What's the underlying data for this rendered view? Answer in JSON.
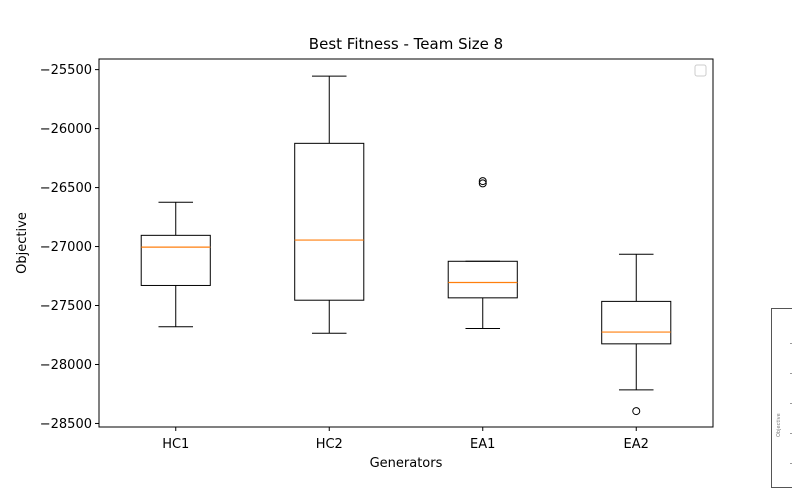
{
  "chart_data": {
    "type": "boxplot",
    "title": "Best Fitness - Team Size 8",
    "xlabel": "Generators",
    "ylabel": "Objective",
    "categories": [
      "HC1",
      "HC2",
      "EA1",
      "EA2"
    ],
    "ylim": [
      -28530,
      -25410
    ],
    "yticks": [
      -25500,
      -26000,
      -26500,
      -27000,
      -27500,
      -28000,
      -28500
    ],
    "yticklabels": [
      "−25500",
      "−26000",
      "−26500",
      "−27000",
      "−27500",
      "−28000",
      "−28500"
    ],
    "grid": false,
    "legend": "top-right",
    "box_color": "#000000",
    "median_color": "#ff7f0e",
    "boxes": [
      {
        "label": "HC1",
        "whislo": -27680,
        "q1": -27330,
        "med": -27005,
        "q3": -26905,
        "whishi": -26625,
        "fliers": []
      },
      {
        "label": "HC2",
        "whislo": -27735,
        "q1": -27455,
        "med": -26945,
        "q3": -26125,
        "whishi": -25555,
        "fliers": []
      },
      {
        "label": "EA1",
        "whislo": -27695,
        "q1": -27435,
        "med": -27305,
        "q3": -27125,
        "whishi": -27125,
        "fliers": [
          -26445,
          -26465
        ]
      },
      {
        "label": "EA2",
        "whislo": -28215,
        "q1": -27825,
        "med": -27725,
        "q3": -27465,
        "whishi": -27065,
        "fliers": [
          -28395
        ]
      }
    ]
  },
  "inset": {
    "ylabel": "Objective"
  }
}
